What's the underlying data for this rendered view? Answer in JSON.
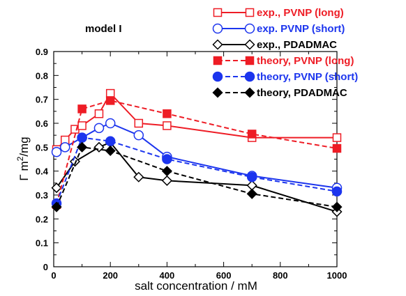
{
  "chart_data": {
    "type": "line",
    "title": "model I",
    "xlabel": "salt concentration / mM",
    "ylabel_prefix": "Γ m",
    "ylabel_sup": "2",
    "ylabel_suffix": "/mg",
    "xlim": [
      0,
      1000
    ],
    "ylim": [
      0,
      0.9
    ],
    "xticks": [
      0,
      200,
      400,
      600,
      800,
      1000
    ],
    "yticks": [
      0,
      0.1,
      0.2,
      0.3,
      0.4,
      0.5,
      0.6,
      0.7,
      0.8,
      0.9
    ],
    "grid": false,
    "legend_position": "top-right",
    "series": [
      {
        "name": "exp., PVNP (long)",
        "color": "#ee1c25",
        "marker": "square",
        "filled": false,
        "dash": false,
        "x": [
          10,
          40,
          75,
          100,
          160,
          200,
          300,
          400,
          700,
          1000
        ],
        "y": [
          0.49,
          0.53,
          0.575,
          0.59,
          0.64,
          0.725,
          0.6,
          0.59,
          0.54,
          0.54
        ]
      },
      {
        "name": "exp. PVNP (short)",
        "color": "#1c35ee",
        "marker": "circle",
        "filled": false,
        "dash": false,
        "x": [
          10,
          40,
          100,
          160,
          200,
          300,
          400,
          700,
          1000
        ],
        "y": [
          0.48,
          0.5,
          0.54,
          0.58,
          0.6,
          0.55,
          0.46,
          0.38,
          0.33
        ]
      },
      {
        "name": "exp., PDADMAC",
        "color": "#000000",
        "marker": "diamond",
        "filled": false,
        "dash": false,
        "x": [
          10,
          75,
          160,
          200,
          300,
          400,
          700,
          1000
        ],
        "y": [
          0.33,
          0.44,
          0.5,
          0.52,
          0.375,
          0.36,
          0.34,
          0.23
        ]
      },
      {
        "name": "theory, PVNP (long)",
        "color": "#ee1c25",
        "marker": "square",
        "filled": true,
        "dash": true,
        "x": [
          10,
          100,
          200,
          400,
          700,
          1000
        ],
        "y": [
          0.26,
          0.66,
          0.695,
          0.64,
          0.555,
          0.495
        ]
      },
      {
        "name": "theory, PVNP (short)",
        "color": "#1c35ee",
        "marker": "circle",
        "filled": true,
        "dash": true,
        "x": [
          10,
          100,
          200,
          400,
          700,
          1000
        ],
        "y": [
          0.265,
          0.54,
          0.525,
          0.45,
          0.375,
          0.315
        ]
      },
      {
        "name": "theory, PDADMAC",
        "color": "#000000",
        "marker": "diamond",
        "filled": true,
        "dash": true,
        "x": [
          10,
          100,
          200,
          400,
          700,
          1000
        ],
        "y": [
          0.25,
          0.5,
          0.485,
          0.4,
          0.305,
          0.25
        ]
      }
    ]
  }
}
